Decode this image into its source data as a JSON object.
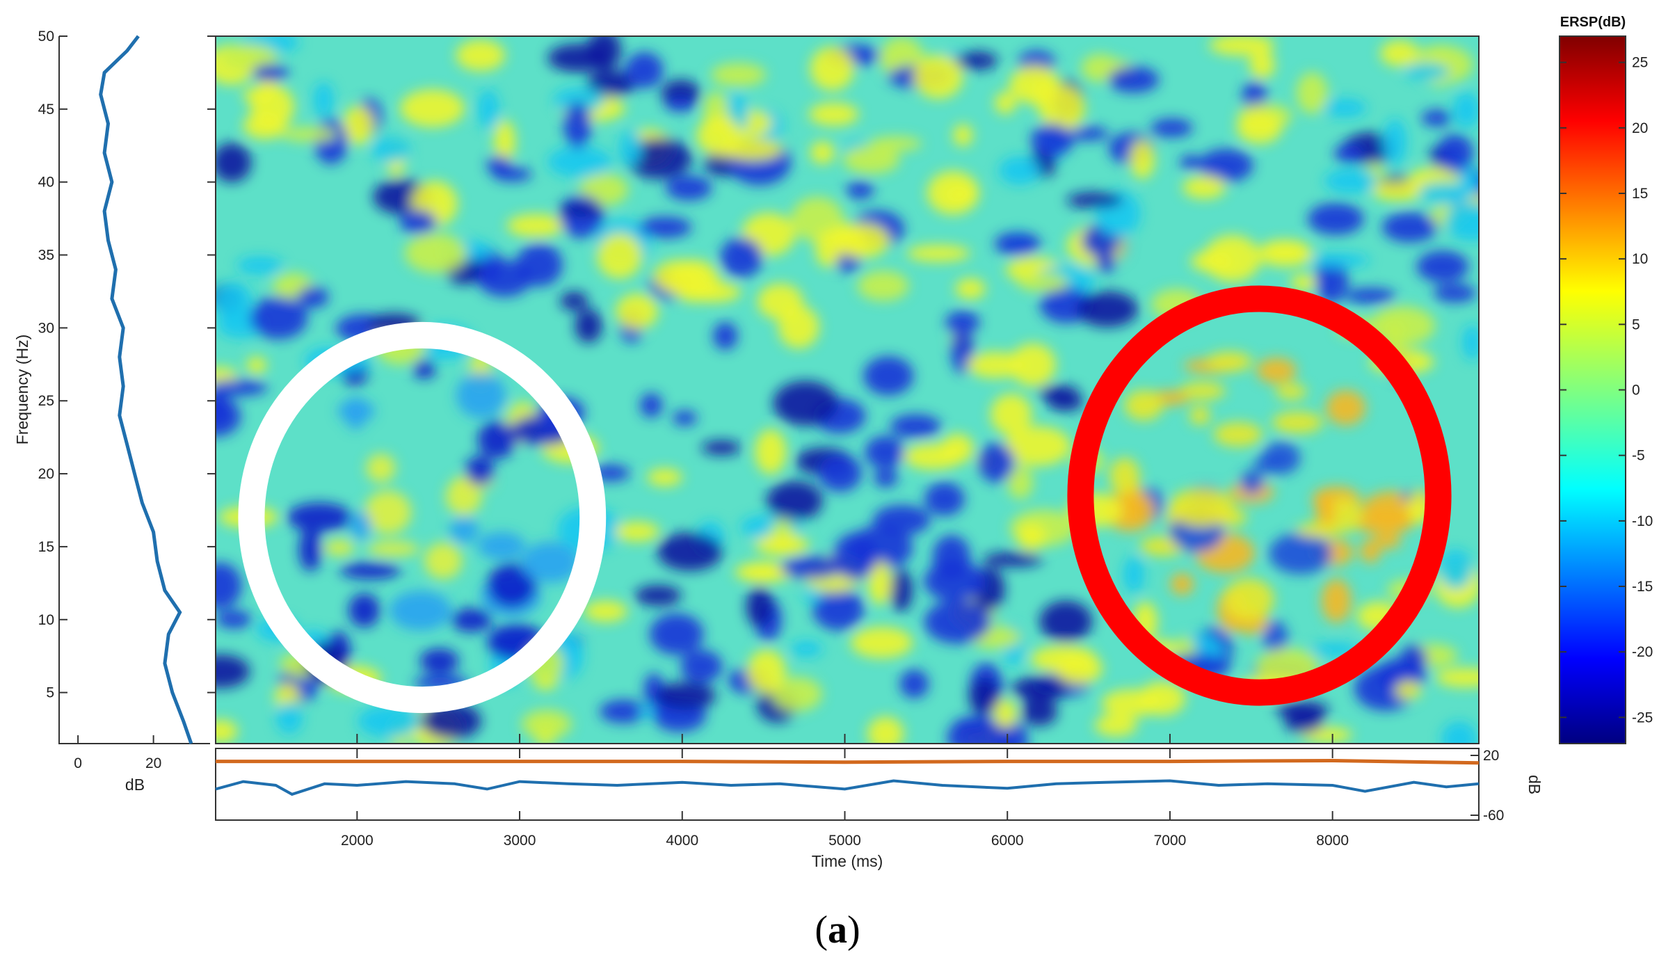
{
  "caption": {
    "open": "(",
    "letter": "a",
    "close": ")"
  },
  "chart_data": {
    "type": "heatmap",
    "title": "",
    "xlabel": "Time (ms)",
    "ylabel": "Frequency (Hz)",
    "xlim": [
      1130,
      8900
    ],
    "ylim": [
      1.5,
      50
    ],
    "x_ticks": [
      2000,
      3000,
      4000,
      5000,
      6000,
      7000,
      8000
    ],
    "y_ticks": [
      5,
      10,
      15,
      20,
      25,
      30,
      35,
      40,
      45,
      50
    ],
    "colorbar": {
      "title": "ERSP(dB)",
      "range": [
        -27,
        27
      ],
      "ticks": [
        25,
        20,
        15,
        10,
        5,
        0,
        -5,
        -10,
        -15,
        -20,
        -25
      ]
    },
    "annotations": [
      {
        "shape": "ellipse",
        "color": "#ffffff",
        "time_center": 2400,
        "freq_center": 17,
        "time_radius": 1050,
        "freq_radius": 12.5,
        "meaning": "low power region"
      },
      {
        "shape": "circle",
        "color": "#ff0000",
        "time_center": 7550,
        "freq_center": 18.5,
        "time_radius": 1100,
        "freq_radius": 13.5,
        "meaning": "high power region"
      }
    ],
    "baseline_spectrum": {
      "xlabel": "dB",
      "x_ticks": [
        0,
        20
      ],
      "xlim": [
        -5,
        35
      ],
      "freq": [
        1.5,
        3,
        5,
        7,
        9,
        10.5,
        12,
        14,
        16,
        18,
        20,
        22,
        24,
        26,
        28,
        30,
        32,
        34,
        36,
        38,
        40,
        42,
        44,
        46,
        47.5,
        49,
        50
      ],
      "db": [
        30,
        28,
        25,
        23,
        24,
        27,
        23,
        21,
        20,
        17,
        15,
        13,
        11,
        12,
        11,
        12,
        9,
        10,
        8,
        7,
        9,
        7,
        8,
        6,
        7,
        13,
        16
      ]
    },
    "time_envelope": {
      "ylabel": "dB",
      "y_ticks": [
        20,
        -60
      ],
      "ylim": [
        -60,
        20
      ],
      "series": [
        {
          "color": "#d2691e",
          "time": [
            1130,
            2000,
            3000,
            4000,
            5000,
            6000,
            7000,
            8000,
            8900
          ],
          "db": [
            12,
            12,
            12,
            12,
            11,
            12,
            12,
            13,
            10
          ]
        },
        {
          "color": "#1f6fae",
          "time": [
            1130,
            1300,
            1500,
            1600,
            1800,
            2000,
            2300,
            2600,
            2800,
            3000,
            3300,
            3600,
            4000,
            4300,
            4600,
            5000,
            5300,
            5600,
            6000,
            6300,
            6600,
            7000,
            7300,
            7600,
            8000,
            8200,
            8500,
            8700,
            8900
          ],
          "db": [
            -25,
            -15,
            -20,
            -32,
            -18,
            -20,
            -15,
            -18,
            -25,
            -15,
            -18,
            -20,
            -16,
            -20,
            -18,
            -25,
            -14,
            -20,
            -24,
            -18,
            -16,
            -14,
            -20,
            -18,
            -20,
            -28,
            -16,
            -22,
            -18
          ]
        }
      ]
    }
  }
}
